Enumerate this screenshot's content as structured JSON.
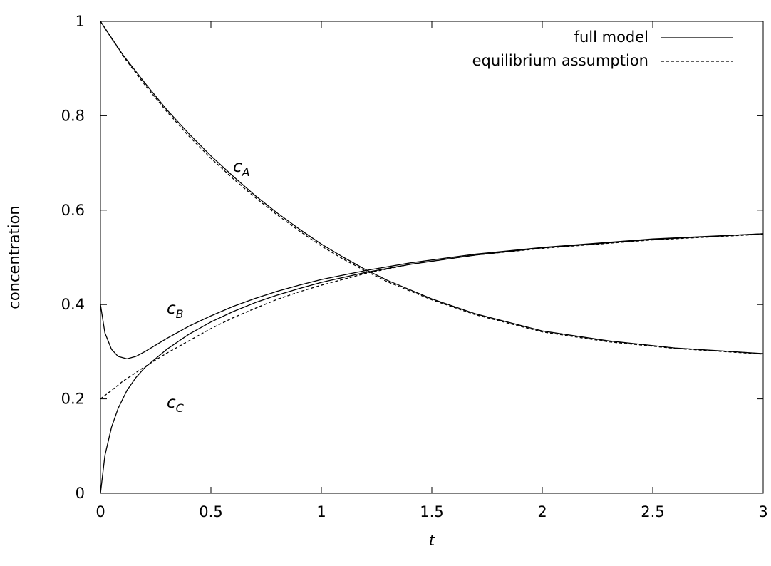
{
  "chart_data": {
    "type": "line",
    "title": "",
    "xlabel": "t",
    "ylabel": "concentration",
    "xlim": [
      0,
      3
    ],
    "ylim": [
      0,
      1
    ],
    "x_ticks": [
      "0",
      "0.5",
      "1",
      "1.5",
      "2",
      "2.5",
      "3"
    ],
    "y_ticks": [
      "0",
      "0.2",
      "0.4",
      "0.6",
      "0.8",
      "1"
    ],
    "grid": false,
    "legend_position": "top-right",
    "legend": [
      {
        "label": "full model",
        "style": "solid"
      },
      {
        "label": "equilibrium assumption",
        "style": "dashed"
      }
    ],
    "annotations": [
      {
        "base": "c",
        "sub": "A",
        "x": 0.6,
        "y": 0.69
      },
      {
        "base": "c",
        "sub": "B",
        "x": 0.3,
        "y": 0.39
      },
      {
        "base": "c",
        "sub": "C",
        "x": 0.3,
        "y": 0.19
      }
    ],
    "series": [
      {
        "legend": "full model",
        "label": "cA",
        "style": "solid",
        "x": [
          0,
          0.1,
          0.2,
          0.3,
          0.4,
          0.5,
          0.6,
          0.7,
          0.8,
          0.9,
          1.0,
          1.1,
          1.2,
          1.3,
          1.5,
          1.7,
          2.0,
          2.3,
          2.6,
          3.0
        ],
        "y": [
          1.0,
          0.93,
          0.87,
          0.813,
          0.762,
          0.715,
          0.672,
          0.631,
          0.594,
          0.56,
          0.528,
          0.5,
          0.474,
          0.451,
          0.412,
          0.38,
          0.344,
          0.323,
          0.308,
          0.296
        ]
      },
      {
        "legend": "equilibrium assumption",
        "label": "cA",
        "style": "dashed",
        "x": [
          0,
          0.1,
          0.2,
          0.3,
          0.4,
          0.5,
          0.6,
          0.7,
          0.8,
          0.9,
          1.0,
          1.1,
          1.2,
          1.3,
          1.5,
          1.7,
          2.0,
          2.3,
          2.6,
          3.0
        ],
        "y": [
          1.0,
          0.928,
          0.866,
          0.809,
          0.757,
          0.71,
          0.667,
          0.627,
          0.59,
          0.556,
          0.524,
          0.496,
          0.471,
          0.448,
          0.41,
          0.378,
          0.342,
          0.321,
          0.307,
          0.295
        ]
      },
      {
        "legend": "full model",
        "label": "cB",
        "style": "solid",
        "x": [
          0,
          0.02,
          0.05,
          0.08,
          0.12,
          0.16,
          0.2,
          0.3,
          0.4,
          0.5,
          0.6,
          0.7,
          0.8,
          0.9,
          1.0,
          1.2,
          1.4,
          1.7,
          2.0,
          2.5,
          3.0
        ],
        "y": [
          0.4,
          0.34,
          0.305,
          0.29,
          0.285,
          0.29,
          0.3,
          0.328,
          0.354,
          0.376,
          0.396,
          0.413,
          0.428,
          0.441,
          0.453,
          0.472,
          0.488,
          0.507,
          0.521,
          0.539,
          0.55
        ]
      },
      {
        "legend": "equilibrium assumption",
        "label": "cB/cC",
        "style": "dashed",
        "x": [
          0,
          0.05,
          0.1,
          0.2,
          0.3,
          0.4,
          0.5,
          0.6,
          0.7,
          0.8,
          0.9,
          1.0,
          1.2,
          1.4,
          1.7,
          2.0,
          2.5,
          3.0
        ],
        "y": [
          0.2,
          0.218,
          0.237,
          0.268,
          0.297,
          0.323,
          0.349,
          0.372,
          0.392,
          0.411,
          0.427,
          0.441,
          0.466,
          0.485,
          0.505,
          0.519,
          0.537,
          0.549
        ]
      },
      {
        "legend": "full model",
        "label": "cC",
        "style": "solid",
        "x": [
          0,
          0.02,
          0.05,
          0.08,
          0.12,
          0.16,
          0.2,
          0.3,
          0.4,
          0.5,
          0.6,
          0.7,
          0.8,
          0.9,
          1.0,
          1.2,
          1.4,
          1.7,
          2.0,
          2.5,
          3.0
        ],
        "y": [
          0.0,
          0.08,
          0.14,
          0.18,
          0.218,
          0.245,
          0.266,
          0.305,
          0.337,
          0.363,
          0.385,
          0.404,
          0.42,
          0.434,
          0.447,
          0.468,
          0.485,
          0.505,
          0.52,
          0.538,
          0.55
        ]
      }
    ]
  }
}
